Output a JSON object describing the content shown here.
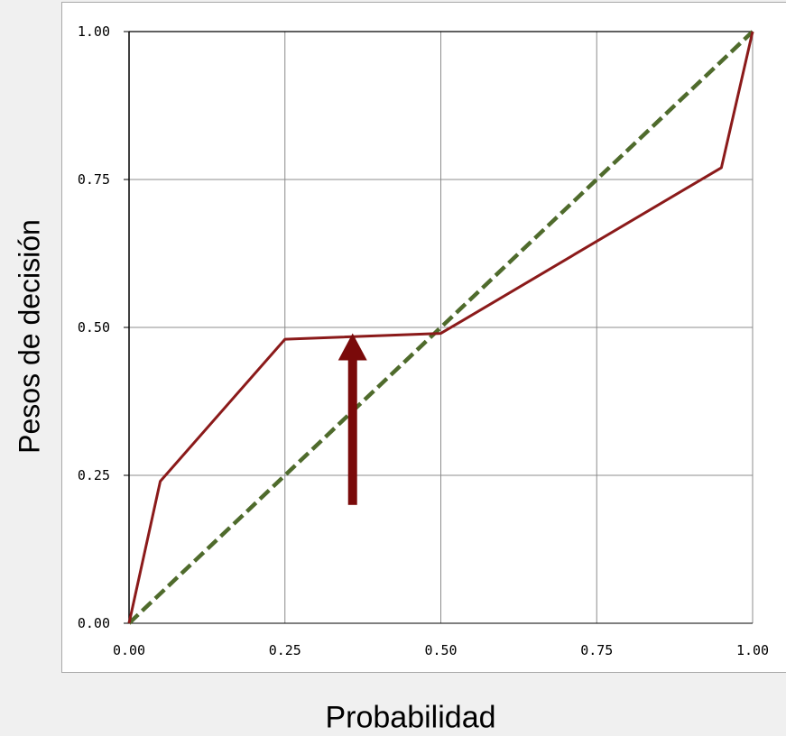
{
  "chart_data": {
    "type": "line",
    "title": "",
    "xlabel": "Probabilidad",
    "ylabel": "Pesos de decisión",
    "xlim": [
      0,
      1
    ],
    "ylim": [
      0,
      1
    ],
    "grid": true,
    "x_ticks": [
      "0.00",
      "0.25",
      "0.50",
      "0.75",
      "1.00"
    ],
    "y_ticks": [
      "0.00",
      "0.25",
      "0.50",
      "0.75",
      "1.00"
    ],
    "series": [
      {
        "color": "#8b1a1a",
        "style": "solid",
        "x": [
          0.0,
          0.05,
          0.25,
          0.5,
          0.95,
          1.0
        ],
        "y": [
          0.0,
          0.24,
          0.48,
          0.49,
          0.77,
          1.0
        ]
      },
      {
        "color": "#4f6b2c",
        "style": "dashed",
        "x": [
          0.0,
          1.0
        ],
        "y": [
          0.0,
          1.0
        ]
      }
    ],
    "annotations": [
      {
        "type": "arrow",
        "direction": "up",
        "color": "#7a0a0a",
        "x": 0.3585,
        "y_from": 0.2,
        "y_to": 0.49
      }
    ]
  }
}
